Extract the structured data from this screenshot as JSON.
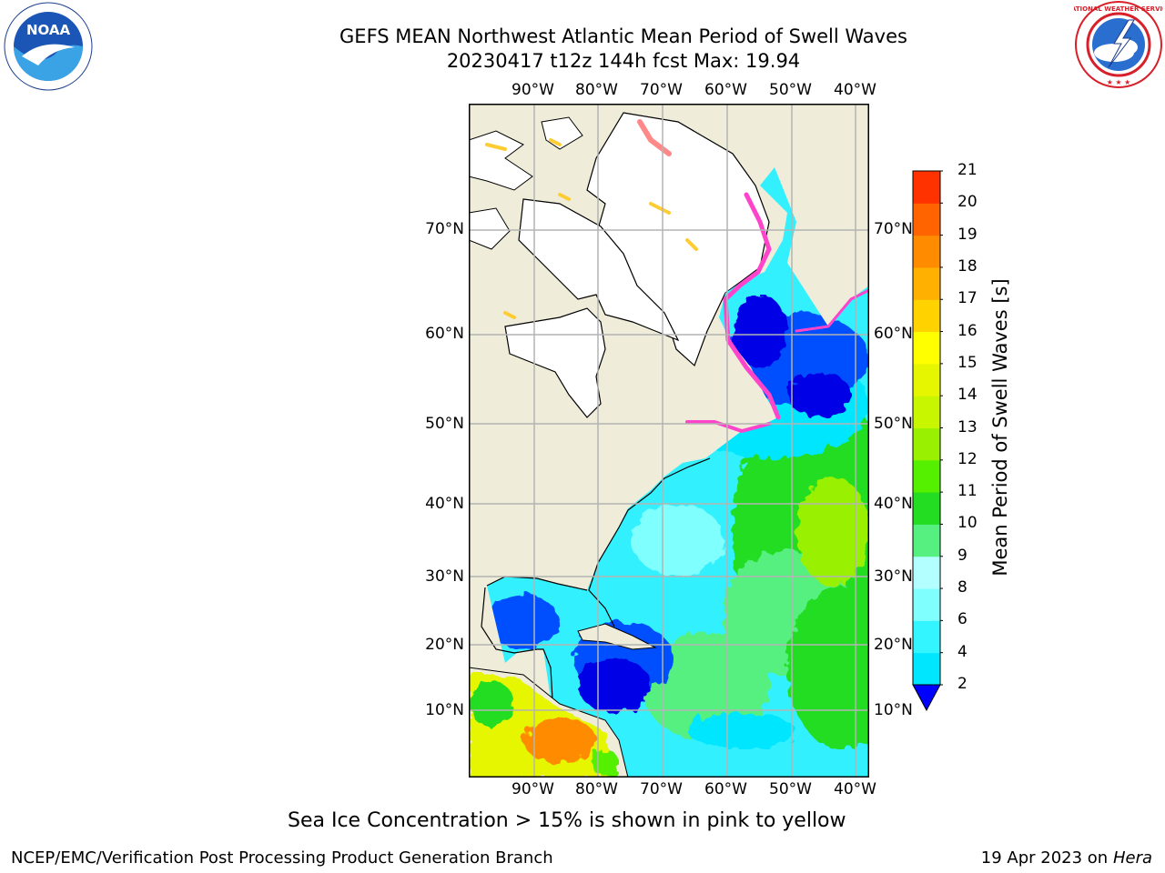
{
  "header": {
    "title_line1": "GEFS MEAN Northwest Atlantic Mean Period of Swell Waves",
    "title_line2": "20230417 t12z 144h fcst   Max: 19.94"
  },
  "logos": {
    "left": {
      "name": "NOAA",
      "ring_text": "NATIONAL OCEANIC AND ATMOSPHERIC ADMINISTRATION · U.S. DEPARTMENT OF COMMERCE"
    },
    "right": {
      "ring_text": "NATIONAL WEATHER SERVICE"
    }
  },
  "map": {
    "lon_labels": [
      "90°W",
      "80°W",
      "70°W",
      "60°W",
      "50°W",
      "40°W"
    ],
    "lat_labels": [
      "70°N",
      "60°N",
      "50°N",
      "40°N",
      "30°N",
      "20°N",
      "10°N"
    ],
    "colors": {
      "land": "#efedd9",
      "ice_free_land": "#ffffff",
      "grid": "#b4b4b4"
    }
  },
  "colorbar": {
    "label": "Mean Period of Swell Waves [s]",
    "ticks": [
      "2",
      "4",
      "6",
      "8",
      "9",
      "10",
      "11",
      "12",
      "13",
      "14",
      "15",
      "16",
      "17",
      "18",
      "19",
      "20",
      "21"
    ],
    "colors": [
      "#0050ff",
      "#00e6ff",
      "#33f5ff",
      "#80ffff",
      "#b3ffff",
      "#55f080",
      "#22dd22",
      "#55f000",
      "#99f000",
      "#c8f500",
      "#e6f500",
      "#ffff00",
      "#ffd200",
      "#ffb000",
      "#ff8c00",
      "#ff6400",
      "#ff3200",
      "#ff0000"
    ],
    "extend_color": "#0000ff"
  },
  "note": "Sea Ice Concentration > 15% is shown in pink to yellow",
  "footer": {
    "left": "NCEP/EMC/Verification Post Processing Product Generation Branch",
    "date": "19 Apr 2023 on ",
    "host": "Hera"
  }
}
